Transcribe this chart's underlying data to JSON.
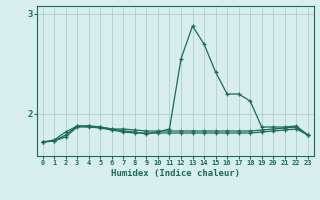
{
  "x": [
    0,
    1,
    2,
    3,
    4,
    5,
    6,
    7,
    8,
    9,
    10,
    11,
    12,
    13,
    14,
    15,
    16,
    17,
    18,
    19,
    20,
    21,
    22,
    23
  ],
  "line1": [
    1.72,
    1.74,
    1.82,
    1.88,
    1.88,
    1.87,
    1.85,
    1.83,
    1.82,
    1.8,
    1.82,
    1.85,
    2.55,
    2.88,
    2.7,
    2.42,
    2.2,
    2.2,
    2.13,
    1.87,
    1.87,
    1.87,
    1.88,
    1.79
  ],
  "line2": [
    1.72,
    1.73,
    1.79,
    1.88,
    1.88,
    1.87,
    1.85,
    1.85,
    1.84,
    1.83,
    1.83,
    1.83,
    1.83,
    1.83,
    1.83,
    1.83,
    1.83,
    1.83,
    1.83,
    1.84,
    1.85,
    1.86,
    1.87,
    1.79
  ],
  "line3": [
    1.72,
    1.73,
    1.77,
    1.87,
    1.87,
    1.86,
    1.84,
    1.82,
    1.81,
    1.81,
    1.81,
    1.81,
    1.81,
    1.81,
    1.81,
    1.81,
    1.81,
    1.81,
    1.81,
    1.82,
    1.83,
    1.84,
    1.85,
    1.79
  ],
  "bg_color": "#d8eeed",
  "grid_color": "#b0d0ce",
  "line_color": "#1a6b5a",
  "xlabel": "Humidex (Indice chaleur)",
  "yticks": [
    2,
    3
  ],
  "ylim": [
    1.58,
    3.08
  ],
  "xlim": [
    -0.5,
    23.5
  ]
}
